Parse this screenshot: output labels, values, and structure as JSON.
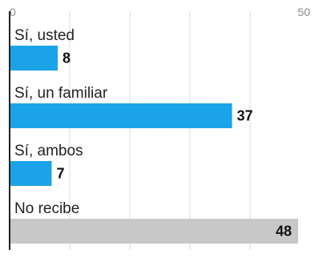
{
  "chart_data": {
    "type": "bar",
    "orientation": "horizontal",
    "categories": [
      "Sí, usted",
      "Sí, un familiar",
      "Sí, ambos",
      "No recibe"
    ],
    "values": [
      8,
      37,
      7,
      48
    ],
    "bar_colors": [
      "#1aa3e8",
      "#1aa3e8",
      "#1aa3e8",
      "#c8c8c8"
    ],
    "xlim": [
      0,
      50
    ],
    "tick_labels": [
      "0",
      "50"
    ],
    "grid": true
  }
}
